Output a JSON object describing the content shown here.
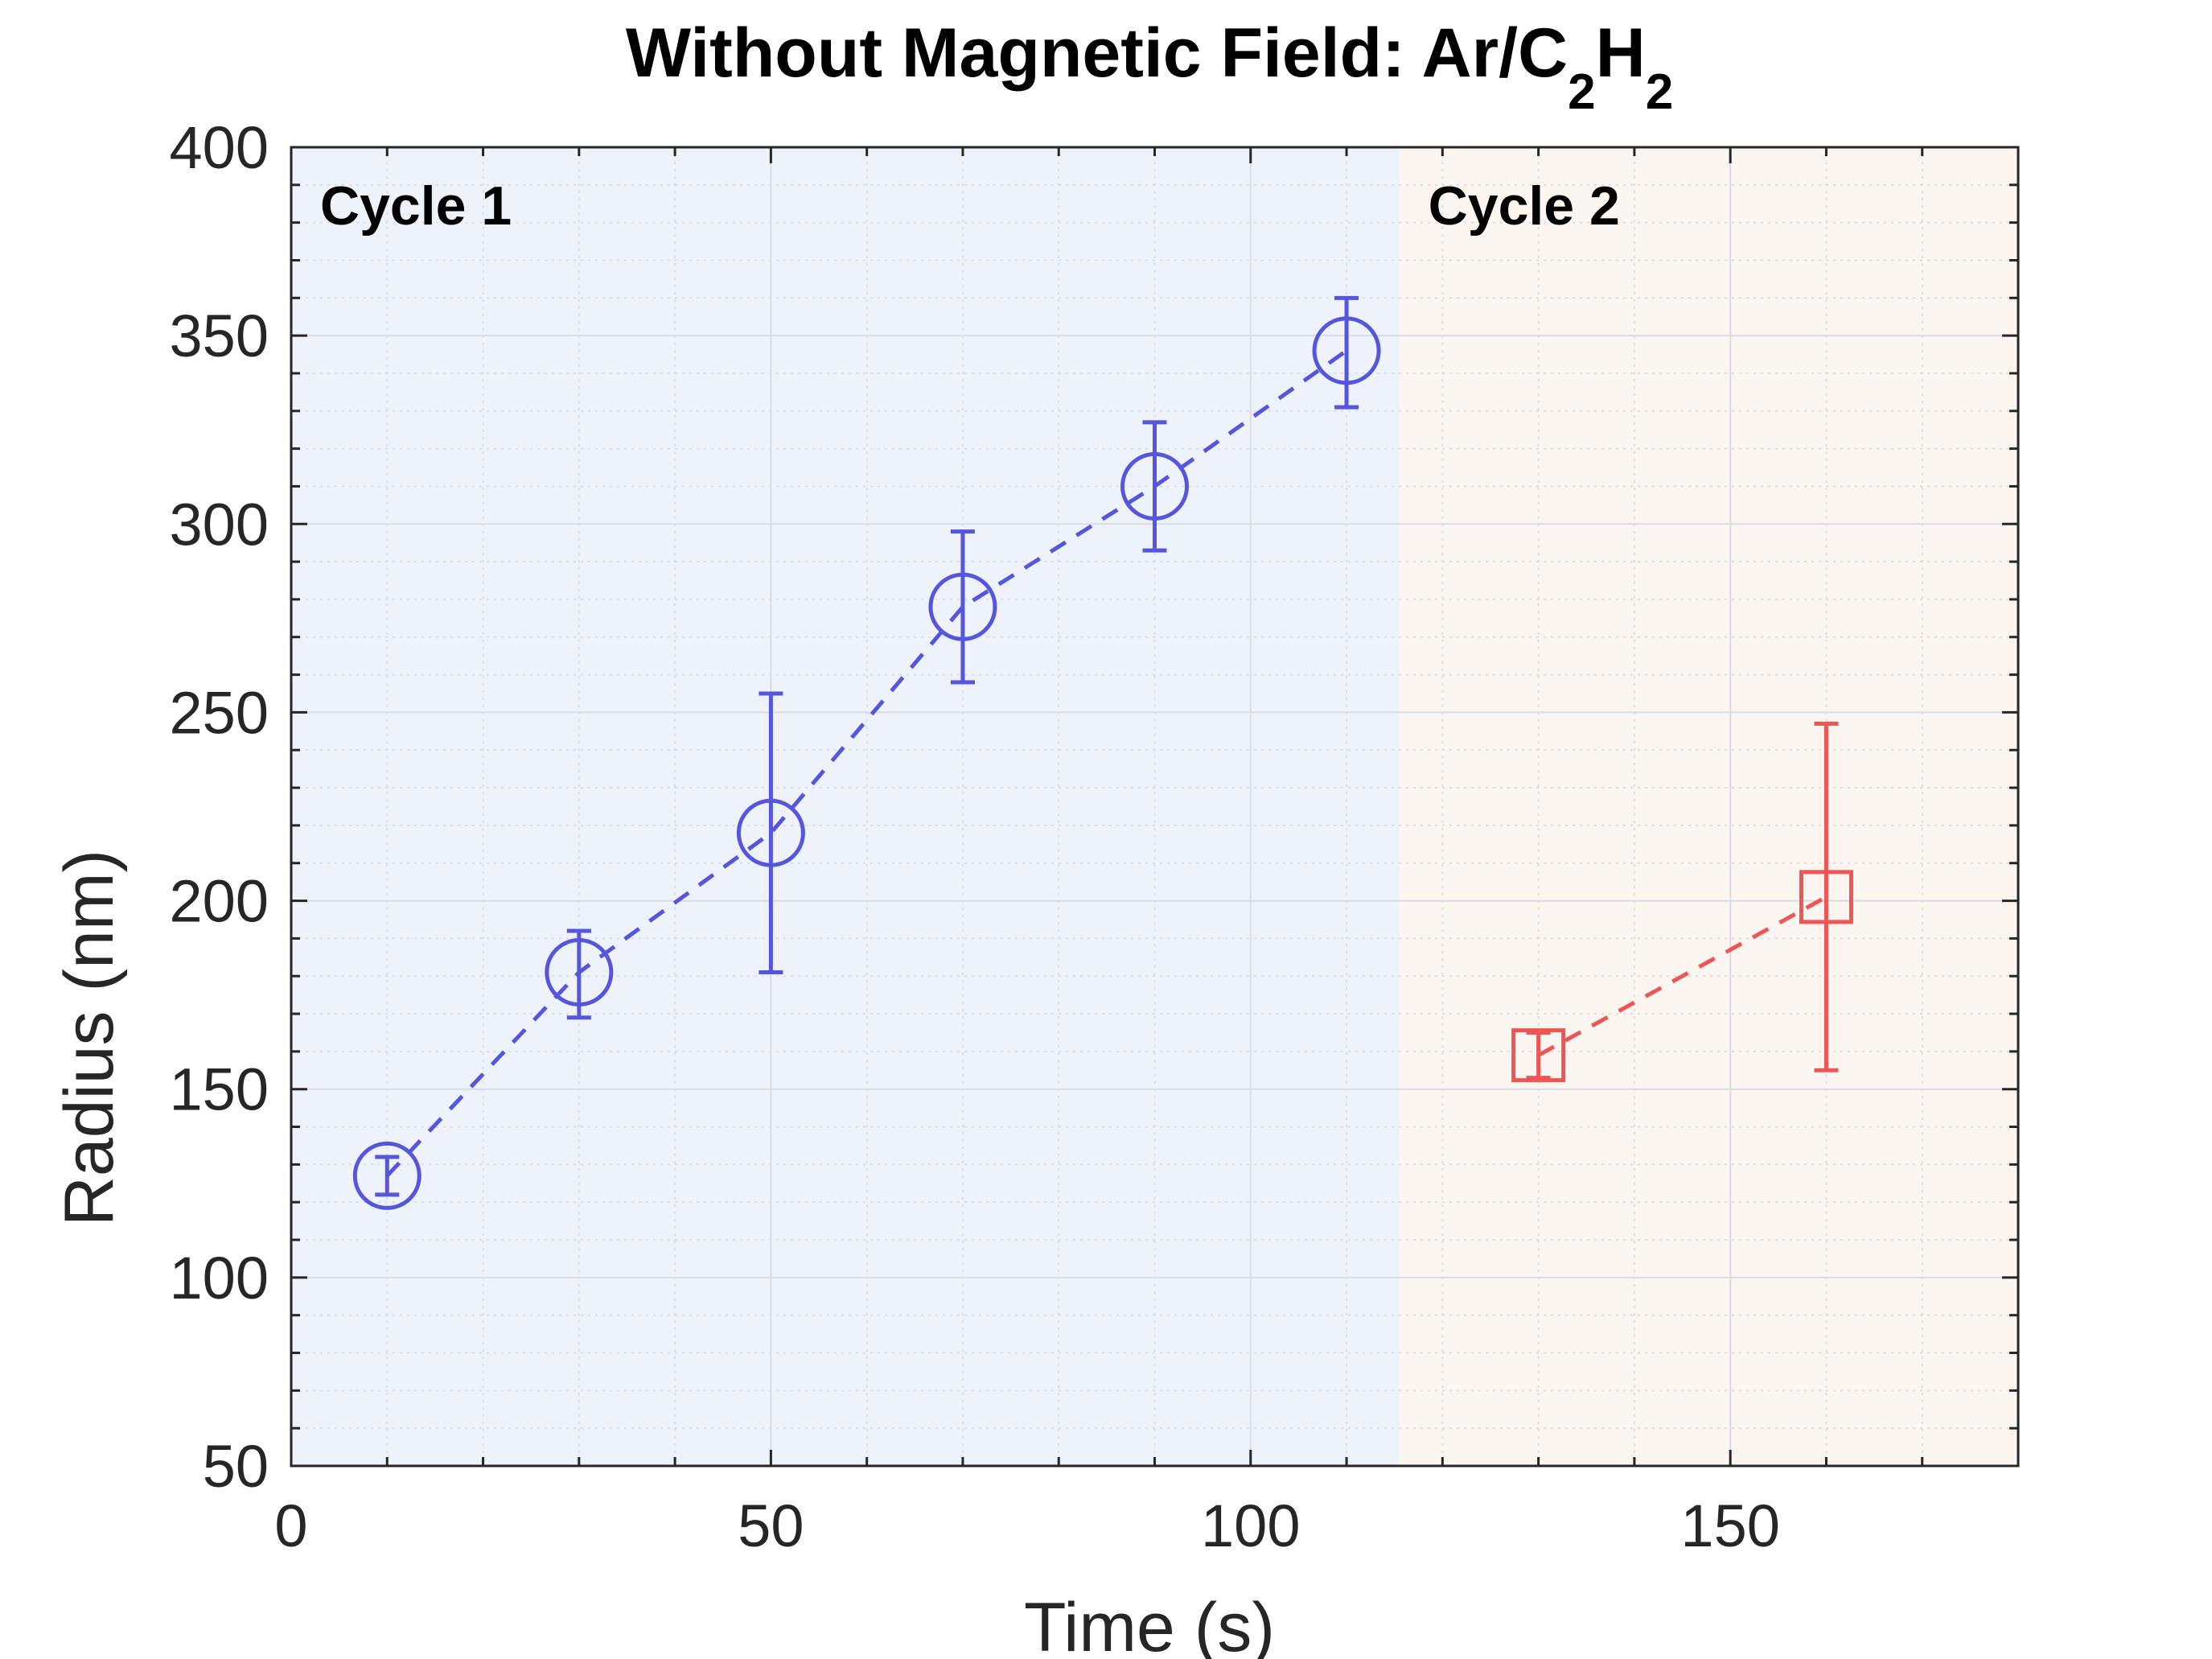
{
  "chart_data": {
    "type": "scatter",
    "title": {
      "main": "Without Magnetic Field: Ar/C",
      "sub1": "2",
      "mid": "H",
      "sub2": "2"
    },
    "xlabel": "Time (s)",
    "ylabel": "Radius (nm)",
    "xlim": [
      0,
      180
    ],
    "ylim": [
      50,
      400
    ],
    "xticks": [
      0,
      50,
      100,
      150
    ],
    "xtick_labels": [
      "0",
      "50",
      "100",
      "150"
    ],
    "yticks": [
      50,
      100,
      150,
      200,
      250,
      300,
      350,
      400
    ],
    "ytick_labels": [
      "50",
      "100",
      "150",
      "200",
      "250",
      "300",
      "350",
      "400"
    ],
    "xminor_step": 10,
    "yminor_step": 10,
    "grid": true,
    "regions": [
      {
        "name": "Cycle 1",
        "label": "Cycle 1",
        "x_start": 0,
        "x_end": 115.5,
        "color": "#eef2fa"
      },
      {
        "name": "Cycle 2",
        "label": "Cycle 2",
        "x_start": 115.5,
        "x_end": 180,
        "color": "#fcf5f0"
      }
    ],
    "series": [
      {
        "name": "Cycle 1",
        "marker": "circle",
        "color": "#5555dd",
        "line_style": "dashed",
        "x": [
          10,
          30,
          50,
          70,
          90,
          110
        ],
        "y": [
          127,
          181,
          218,
          278,
          310,
          346
        ],
        "err_low": [
          5,
          12,
          37,
          20,
          17,
          15
        ],
        "err_high": [
          5,
          11,
          37,
          20,
          17,
          14
        ]
      },
      {
        "name": "Cycle 2",
        "marker": "square",
        "color": "#ee5555",
        "line_style": "dashed",
        "x": [
          130,
          160
        ],
        "y": [
          159,
          201
        ],
        "err_low": [
          6,
          46
        ],
        "err_high": [
          6,
          46
        ]
      }
    ]
  }
}
